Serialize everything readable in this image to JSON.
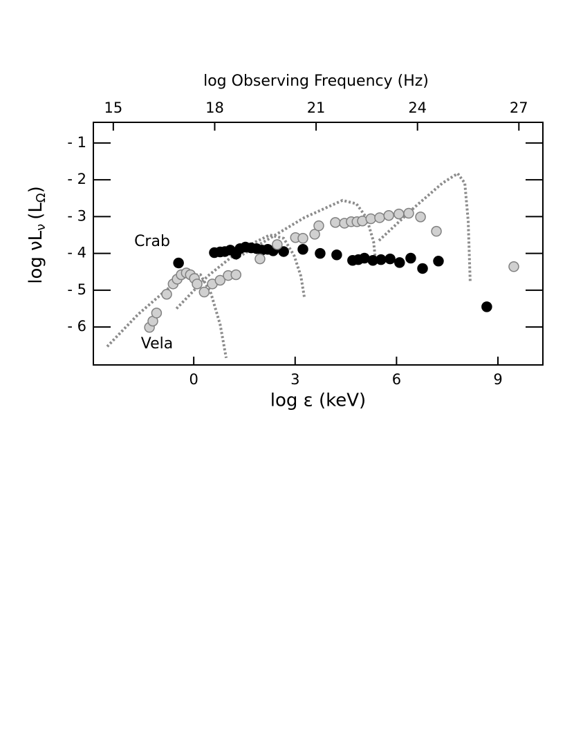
{
  "chart_data": {
    "type": "scatter",
    "x2label": "log Observing Frequency (Hz)",
    "xlabel": "log ε (keV)",
    "ylabel": [
      "log νL",
      "ν",
      "(L",
      "Ω",
      ")"
    ],
    "xlim": [
      -2.97,
      10.33
    ],
    "xticks": [
      0,
      3,
      6,
      9
    ],
    "x2lim": [
      14.41,
      27.71
    ],
    "x2ticks": [
      15,
      18,
      21,
      24,
      27
    ],
    "ylim": [
      -7.03,
      -0.44
    ],
    "yticks": [
      {
        "value": -1,
        "label": "- 1"
      },
      {
        "value": -2,
        "label": "- 2"
      },
      {
        "value": -3,
        "label": "- 3"
      },
      {
        "value": -4,
        "label": "- 4"
      },
      {
        "value": -5,
        "label": "- 5"
      },
      {
        "value": -6,
        "label": "- 6"
      }
    ],
    "series": [
      {
        "name": "Crab",
        "color": "#000000",
        "edge": "#000000",
        "x": [
          -0.45,
          0.61,
          0.78,
          0.92,
          1.08,
          1.25,
          1.37,
          1.53,
          1.7,
          1.86,
          2.02,
          2.19,
          2.35,
          2.66,
          3.23,
          3.74,
          4.23,
          4.7,
          4.87,
          5.05,
          5.3,
          5.54,
          5.81,
          6.09,
          6.42,
          6.77,
          7.24,
          8.67
        ],
        "values": [
          -4.26,
          -3.98,
          -3.96,
          -3.95,
          -3.91,
          -4.02,
          -3.87,
          -3.83,
          -3.85,
          -3.87,
          -3.91,
          -3.89,
          -3.93,
          -3.95,
          -3.89,
          -4.0,
          -4.04,
          -4.19,
          -4.17,
          -4.13,
          -4.19,
          -4.17,
          -4.15,
          -4.25,
          -4.13,
          -4.41,
          -4.21,
          -5.45
        ]
      },
      {
        "name": "Vela",
        "color": "#d0d0d0",
        "edge": "#808080",
        "x": [
          -1.31,
          -1.21,
          -1.1,
          -0.8,
          -0.61,
          -0.49,
          -0.37,
          -0.22,
          -0.1,
          0.02,
          0.1,
          0.31,
          0.55,
          0.78,
          1.02,
          1.25,
          1.96,
          2.47,
          3.01,
          3.23,
          3.58,
          3.7,
          4.19,
          4.46,
          4.66,
          4.83,
          4.99,
          5.24,
          5.5,
          5.77,
          6.07,
          6.36,
          6.71,
          7.18,
          9.47
        ],
        "values": [
          -6.01,
          -5.84,
          -5.62,
          -5.11,
          -4.83,
          -4.7,
          -4.58,
          -4.53,
          -4.58,
          -4.68,
          -4.83,
          -5.05,
          -4.83,
          -4.73,
          -4.6,
          -4.58,
          -4.15,
          -3.76,
          -3.57,
          -3.59,
          -3.48,
          -3.25,
          -3.16,
          -3.18,
          -3.14,
          -3.14,
          -3.12,
          -3.06,
          -3.03,
          -2.97,
          -2.93,
          -2.91,
          -3.01,
          -3.4,
          -4.36
        ]
      }
    ],
    "curves": [
      {
        "color": "#8c8c8c",
        "x": [
          -2.56,
          -1.64,
          -0.82,
          -0.2,
          0.2,
          0.51,
          0.78,
          0.96
        ],
        "values": [
          -6.53,
          -5.65,
          -5.0,
          -4.58,
          -4.58,
          -5.09,
          -5.93,
          -6.84
        ]
      },
      {
        "color": "#8c8c8c",
        "x": [
          -0.51,
          0.41,
          1.43,
          2.25,
          2.66,
          2.97,
          3.17,
          3.27
        ],
        "values": [
          -5.5,
          -4.62,
          -3.87,
          -3.5,
          -3.59,
          -4.06,
          -4.62,
          -5.18
        ]
      },
      {
        "color": "#8c8c8c",
        "x": [
          1.23,
          2.25,
          3.27,
          4.4,
          4.81,
          5.11,
          5.32,
          5.38
        ],
        "values": [
          -4.15,
          -3.59,
          -3.03,
          -2.56,
          -2.65,
          -3.03,
          -3.68,
          -4.21
        ]
      },
      {
        "color": "#8c8c8c",
        "x": [
          5.48,
          6.54,
          7.36,
          7.81,
          8.02,
          8.12,
          8.18
        ],
        "values": [
          -3.65,
          -2.74,
          -2.09,
          -1.83,
          -2.09,
          -3.12,
          -4.77
        ]
      }
    ]
  }
}
